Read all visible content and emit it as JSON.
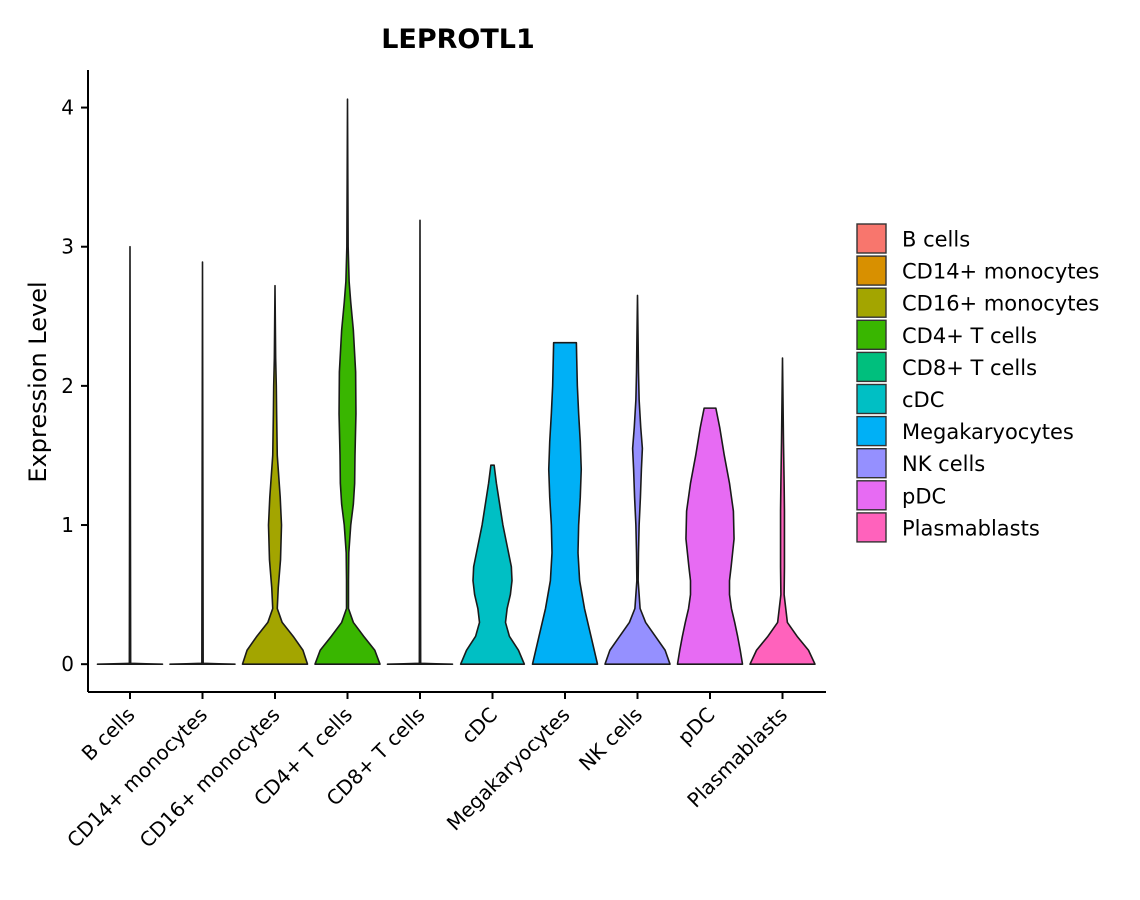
{
  "chart_data": {
    "type": "violin",
    "title": "LEPROTL1",
    "xlabel": "",
    "ylabel": "Expression Level",
    "ylim": [
      -0.2,
      4.27
    ],
    "yticks": [
      0,
      1,
      2,
      3,
      4
    ],
    "grid": false,
    "legend_position": "right",
    "categories": [
      "B cells",
      "CD14+ monocytes",
      "CD16+ monocytes",
      "CD4+ T cells",
      "CD8+ T cells",
      "cDC",
      "Megakaryocytes",
      "NK cells",
      "pDC",
      "Plasmablasts"
    ],
    "colors": [
      "#F8766D",
      "#D89000",
      "#A3A500",
      "#39B600",
      "#00BF7D",
      "#00BFC4",
      "#00B0F6",
      "#9590FF",
      "#E76BF3",
      "#FF62BC"
    ],
    "series": [
      {
        "name": "B cells",
        "max": 3.0,
        "profile": [
          [
            0,
            1.0
          ],
          [
            0.003,
            0.5
          ],
          [
            0.006,
            0.02
          ],
          [
            3.0,
            0.0
          ]
        ]
      },
      {
        "name": "CD14+ monocytes",
        "max": 2.89,
        "profile": [
          [
            0,
            1.0
          ],
          [
            0.003,
            0.5
          ],
          [
            0.006,
            0.02
          ],
          [
            2.89,
            0.0
          ]
        ]
      },
      {
        "name": "CD16+ monocytes",
        "max": 2.72,
        "profile": [
          [
            0,
            1.0
          ],
          [
            0.1,
            0.86
          ],
          [
            0.2,
            0.56
          ],
          [
            0.3,
            0.22
          ],
          [
            0.4,
            0.07
          ],
          [
            0.55,
            0.1
          ],
          [
            0.75,
            0.17
          ],
          [
            1.0,
            0.2
          ],
          [
            1.2,
            0.16
          ],
          [
            1.5,
            0.07
          ],
          [
            1.8,
            0.05
          ],
          [
            2.0,
            0.04
          ],
          [
            2.2,
            0.02
          ],
          [
            2.72,
            0.0
          ]
        ]
      },
      {
        "name": "CD4+ T cells",
        "max": 4.06,
        "profile": [
          [
            0,
            1.0
          ],
          [
            0.1,
            0.84
          ],
          [
            0.2,
            0.5
          ],
          [
            0.3,
            0.18
          ],
          [
            0.4,
            0.03
          ],
          [
            0.6,
            0.03
          ],
          [
            0.8,
            0.04
          ],
          [
            1.0,
            0.1
          ],
          [
            1.15,
            0.18
          ],
          [
            1.3,
            0.22
          ],
          [
            1.5,
            0.23
          ],
          [
            1.8,
            0.26
          ],
          [
            2.1,
            0.25
          ],
          [
            2.4,
            0.18
          ],
          [
            2.6,
            0.1
          ],
          [
            2.75,
            0.05
          ],
          [
            3.0,
            0.02
          ],
          [
            3.5,
            0.01
          ],
          [
            4.06,
            0.0
          ]
        ]
      },
      {
        "name": "CD8+ T cells",
        "max": 3.19,
        "profile": [
          [
            0,
            1.0
          ],
          [
            0.003,
            0.5
          ],
          [
            0.006,
            0.02
          ],
          [
            3.19,
            0.0
          ]
        ]
      },
      {
        "name": "cDC",
        "max": 1.43,
        "profile": [
          [
            0,
            0.98
          ],
          [
            0.1,
            0.8
          ],
          [
            0.2,
            0.52
          ],
          [
            0.3,
            0.4
          ],
          [
            0.4,
            0.45
          ],
          [
            0.5,
            0.55
          ],
          [
            0.6,
            0.6
          ],
          [
            0.7,
            0.58
          ],
          [
            0.85,
            0.45
          ],
          [
            1.0,
            0.32
          ],
          [
            1.15,
            0.22
          ],
          [
            1.3,
            0.12
          ],
          [
            1.43,
            0.05
          ]
        ]
      },
      {
        "name": "Megakaryocytes",
        "max": 2.31,
        "profile": [
          [
            0,
            1.0
          ],
          [
            0.2,
            0.8
          ],
          [
            0.4,
            0.6
          ],
          [
            0.6,
            0.45
          ],
          [
            0.8,
            0.4
          ],
          [
            1.0,
            0.42
          ],
          [
            1.2,
            0.47
          ],
          [
            1.4,
            0.5
          ],
          [
            1.6,
            0.47
          ],
          [
            1.8,
            0.42
          ],
          [
            2.0,
            0.38
          ],
          [
            2.2,
            0.36
          ],
          [
            2.31,
            0.35
          ]
        ]
      },
      {
        "name": "NK cells",
        "max": 2.65,
        "profile": [
          [
            0,
            1.0
          ],
          [
            0.1,
            0.85
          ],
          [
            0.2,
            0.55
          ],
          [
            0.3,
            0.25
          ],
          [
            0.4,
            0.08
          ],
          [
            0.6,
            0.02
          ],
          [
            0.8,
            0.03
          ],
          [
            1.0,
            0.05
          ],
          [
            1.2,
            0.09
          ],
          [
            1.4,
            0.12
          ],
          [
            1.55,
            0.15
          ],
          [
            1.7,
            0.1
          ],
          [
            1.9,
            0.05
          ],
          [
            2.1,
            0.03
          ],
          [
            2.3,
            0.02
          ],
          [
            2.65,
            0.0
          ]
        ]
      },
      {
        "name": "pDC",
        "max": 1.84,
        "profile": [
          [
            0,
            1.0
          ],
          [
            0.1,
            0.93
          ],
          [
            0.2,
            0.85
          ],
          [
            0.3,
            0.76
          ],
          [
            0.4,
            0.66
          ],
          [
            0.5,
            0.6
          ],
          [
            0.6,
            0.6
          ],
          [
            0.7,
            0.65
          ],
          [
            0.9,
            0.74
          ],
          [
            1.1,
            0.72
          ],
          [
            1.3,
            0.6
          ],
          [
            1.5,
            0.44
          ],
          [
            1.7,
            0.3
          ],
          [
            1.84,
            0.18
          ]
        ]
      },
      {
        "name": "Plasmablasts",
        "max": 2.2,
        "profile": [
          [
            0,
            1.0
          ],
          [
            0.1,
            0.8
          ],
          [
            0.2,
            0.45
          ],
          [
            0.3,
            0.15
          ],
          [
            0.5,
            0.05
          ],
          [
            0.7,
            0.06
          ],
          [
            0.9,
            0.06
          ],
          [
            1.1,
            0.06
          ],
          [
            1.3,
            0.05
          ],
          [
            1.6,
            0.03
          ],
          [
            2.0,
            0.01
          ],
          [
            2.2,
            0.0
          ]
        ]
      }
    ]
  }
}
